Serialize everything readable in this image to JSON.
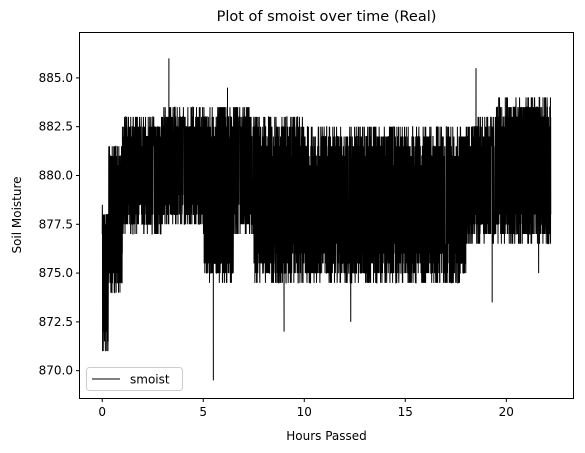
{
  "chart_data": {
    "type": "line",
    "title": "Plot of smoist over time (Real)",
    "xlabel": "Hours Passed",
    "ylabel": "Soil Moisture",
    "xlim": [
      -1.1,
      23.3
    ],
    "ylim": [
      868.6,
      887.3
    ],
    "xticks": [
      0,
      5,
      10,
      15,
      20
    ],
    "xtick_labels": [
      "0",
      "5",
      "10",
      "15",
      "20"
    ],
    "yticks": [
      870.0,
      872.5,
      875.0,
      877.5,
      880.0,
      882.5,
      885.0
    ],
    "ytick_labels": [
      "870.0",
      "872.5",
      "875.0",
      "877.5",
      "880.0",
      "882.5",
      "885.0"
    ],
    "grid": false,
    "legend": {
      "position": "lower-left",
      "entries": [
        "smoist"
      ]
    },
    "series": [
      {
        "name": "smoist",
        "color": "#000000",
        "x_start": 0.0,
        "x_end": 22.2,
        "y_min": 869.5,
        "y_max": 886.0,
        "segments": [
          {
            "x": [
              0.0,
              0.3
            ],
            "lo": 871.0,
            "hi": 878.5
          },
          {
            "x": [
              0.3,
              1.0
            ],
            "lo": 874.0,
            "hi": 881.5
          },
          {
            "x": [
              1.0,
              3.0
            ],
            "lo": 877.0,
            "hi": 883.0
          },
          {
            "x": [
              3.0,
              5.0
            ],
            "lo": 877.5,
            "hi": 883.5
          },
          {
            "x": [
              5.0,
              6.5
            ],
            "lo": 874.5,
            "hi": 883.5
          },
          {
            "x": [
              6.5,
              7.5
            ],
            "lo": 877.0,
            "hi": 883.5
          },
          {
            "x": [
              7.5,
              10.0
            ],
            "lo": 874.5,
            "hi": 883.0
          },
          {
            "x": [
              10.0,
              18.0
            ],
            "lo": 874.5,
            "hi": 882.5
          },
          {
            "x": [
              18.0,
              19.5
            ],
            "lo": 876.5,
            "hi": 883.0
          },
          {
            "x": [
              19.5,
              22.2
            ],
            "lo": 876.5,
            "hi": 884.0
          }
        ],
        "spikes": [
          {
            "x": 0.05,
            "y": 871.0
          },
          {
            "x": 0.1,
            "y": 872.0
          },
          {
            "x": 3.3,
            "y": 886.0
          },
          {
            "x": 5.5,
            "y": 869.5
          },
          {
            "x": 6.2,
            "y": 884.5
          },
          {
            "x": 9.0,
            "y": 872.0
          },
          {
            "x": 12.3,
            "y": 872.5
          },
          {
            "x": 18.5,
            "y": 885.5
          },
          {
            "x": 19.3,
            "y": 873.5
          },
          {
            "x": 21.6,
            "y": 875.0
          }
        ]
      }
    ]
  }
}
